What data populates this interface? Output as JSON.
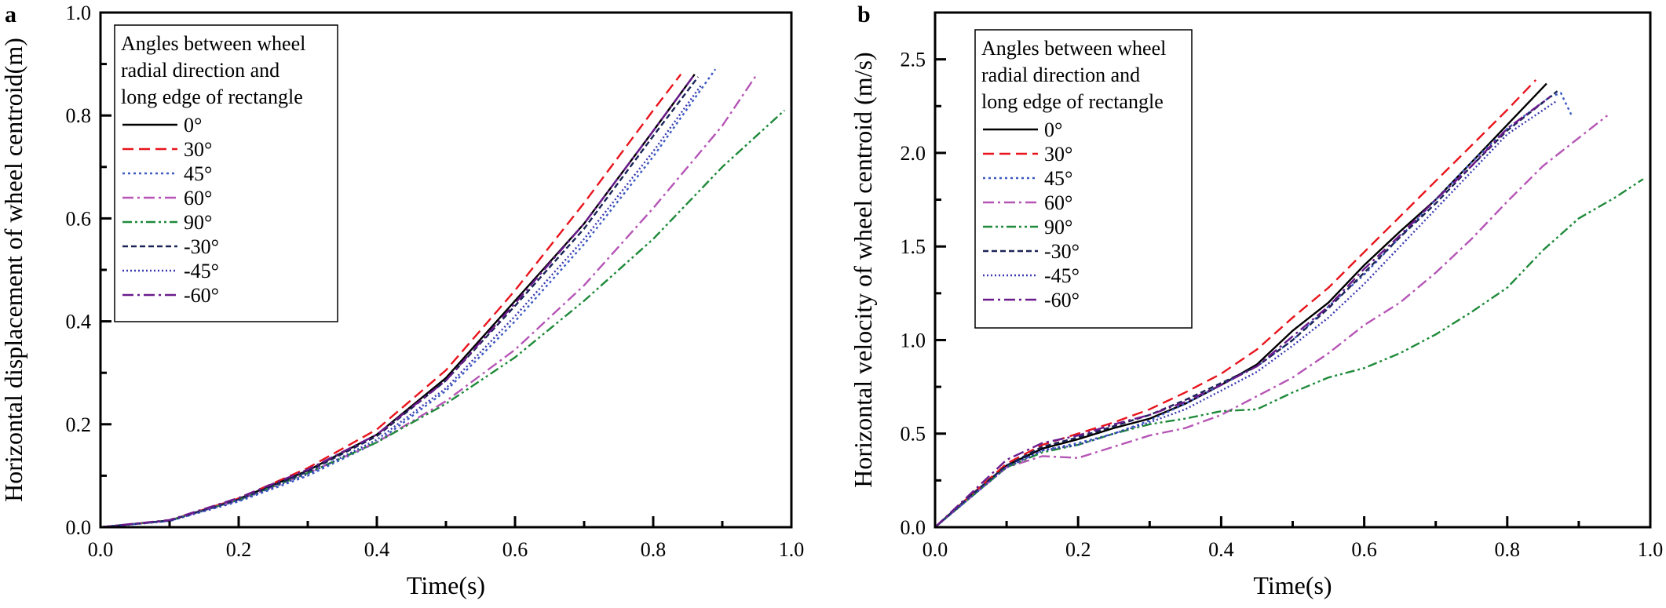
{
  "chart_data": [
    {
      "panel": "a",
      "type": "line",
      "xlabel": "Time(s)",
      "ylabel": "Horizontal displacement of wheel centroid(m)",
      "xlim": [
        0,
        1.0
      ],
      "ylim": [
        0,
        1.0
      ],
      "xticks": [
        "0.0",
        "0.2",
        "0.4",
        "0.6",
        "0.8",
        "1.0"
      ],
      "yticks": [
        "0.0",
        "0.2",
        "0.4",
        "0.6",
        "0.8",
        "1.0"
      ],
      "grid": false,
      "legend": {
        "title": [
          "Angles between wheel",
          "radial direction and",
          "long edge of rectangle"
        ],
        "placement": "top-left"
      },
      "series": [
        {
          "name": "0°",
          "color": "#000000",
          "dash": "solid",
          "x": [
            0,
            0.1,
            0.2,
            0.3,
            0.4,
            0.5,
            0.6,
            0.7,
            0.8,
            0.86
          ],
          "y": [
            0,
            0.013,
            0.055,
            0.11,
            0.18,
            0.29,
            0.44,
            0.59,
            0.77,
            0.88
          ]
        },
        {
          "name": "30°",
          "color": "#e8141c",
          "dash": "dashed",
          "x": [
            0,
            0.1,
            0.2,
            0.3,
            0.4,
            0.5,
            0.6,
            0.7,
            0.8,
            0.84
          ],
          "y": [
            0,
            0.013,
            0.056,
            0.115,
            0.19,
            0.305,
            0.46,
            0.63,
            0.81,
            0.88
          ]
        },
        {
          "name": "45°",
          "color": "#3a58c0",
          "dash": "dotted",
          "x": [
            0,
            0.1,
            0.2,
            0.3,
            0.4,
            0.5,
            0.6,
            0.7,
            0.8,
            0.89
          ],
          "y": [
            0,
            0.012,
            0.05,
            0.1,
            0.165,
            0.265,
            0.4,
            0.55,
            0.72,
            0.89
          ]
        },
        {
          "name": "60°",
          "color": "#b555b5",
          "dash": "dashdot",
          "x": [
            0,
            0.1,
            0.2,
            0.3,
            0.4,
            0.5,
            0.6,
            0.7,
            0.8,
            0.9,
            0.95
          ],
          "y": [
            0,
            0.013,
            0.053,
            0.105,
            0.165,
            0.245,
            0.345,
            0.47,
            0.62,
            0.78,
            0.88
          ]
        },
        {
          "name": "90°",
          "color": "#1f8a3a",
          "dash": "dashdotdot",
          "x": [
            0,
            0.1,
            0.2,
            0.3,
            0.4,
            0.5,
            0.6,
            0.7,
            0.8,
            0.9,
            0.99
          ],
          "y": [
            0,
            0.013,
            0.053,
            0.105,
            0.165,
            0.24,
            0.33,
            0.44,
            0.56,
            0.7,
            0.81
          ]
        },
        {
          "name": "-30°",
          "color": "#1a2456",
          "dash": "shortdash",
          "x": [
            0,
            0.1,
            0.2,
            0.3,
            0.4,
            0.5,
            0.6,
            0.7,
            0.8,
            0.865
          ],
          "y": [
            0,
            0.013,
            0.054,
            0.108,
            0.177,
            0.285,
            0.43,
            0.58,
            0.76,
            0.875
          ]
        },
        {
          "name": "-45°",
          "color": "#3838b0",
          "dash": "shortdot",
          "x": [
            0,
            0.1,
            0.2,
            0.3,
            0.4,
            0.5,
            0.6,
            0.7,
            0.8,
            0.87
          ],
          "y": [
            0,
            0.012,
            0.052,
            0.103,
            0.17,
            0.27,
            0.41,
            0.56,
            0.73,
            0.86
          ]
        },
        {
          "name": "-60°",
          "color": "#6a1a8c",
          "dash": "dashdot",
          "x": [
            0,
            0.1,
            0.2,
            0.3,
            0.4,
            0.5,
            0.6,
            0.7,
            0.8,
            0.86
          ],
          "y": [
            0,
            0.014,
            0.057,
            0.112,
            0.18,
            0.285,
            0.435,
            0.59,
            0.77,
            0.88
          ]
        }
      ]
    },
    {
      "panel": "b",
      "type": "line",
      "xlabel": "Time(s)",
      "ylabel": "Horizontal velocity of wheel centroid (m/s)",
      "xlim": [
        0,
        1.0
      ],
      "ylim": [
        0,
        2.75
      ],
      "xticks": [
        "0.0",
        "0.2",
        "0.4",
        "0.6",
        "0.8",
        "1.0"
      ],
      "yticks": [
        "0.0",
        "0.5",
        "1.0",
        "1.5",
        "2.0",
        "2.5"
      ],
      "grid": false,
      "legend": {
        "title": [
          "Angles between wheel",
          "radial direction and",
          "long edge of rectangle"
        ],
        "placement": "top-left"
      },
      "series": [
        {
          "name": "0°",
          "color": "#000000",
          "dash": "solid",
          "x": [
            0,
            0.05,
            0.1,
            0.15,
            0.2,
            0.25,
            0.3,
            0.35,
            0.4,
            0.45,
            0.5,
            0.55,
            0.6,
            0.65,
            0.7,
            0.75,
            0.8,
            0.855
          ],
          "y": [
            0,
            0.17,
            0.33,
            0.42,
            0.47,
            0.53,
            0.58,
            0.66,
            0.76,
            0.87,
            1.05,
            1.2,
            1.4,
            1.58,
            1.75,
            1.95,
            2.15,
            2.37
          ]
        },
        {
          "name": "30°",
          "color": "#e8141c",
          "dash": "dashed",
          "x": [
            0,
            0.05,
            0.1,
            0.15,
            0.2,
            0.25,
            0.3,
            0.35,
            0.4,
            0.45,
            0.5,
            0.55,
            0.6,
            0.65,
            0.7,
            0.75,
            0.8,
            0.84
          ],
          "y": [
            0,
            0.17,
            0.34,
            0.44,
            0.5,
            0.56,
            0.63,
            0.72,
            0.82,
            0.95,
            1.12,
            1.28,
            1.47,
            1.66,
            1.85,
            2.04,
            2.23,
            2.39
          ]
        },
        {
          "name": "45°",
          "color": "#3a58c0",
          "dash": "dotted",
          "x": [
            0,
            0.05,
            0.1,
            0.15,
            0.2,
            0.25,
            0.3,
            0.35,
            0.4,
            0.45,
            0.5,
            0.55,
            0.6,
            0.65,
            0.7,
            0.75,
            0.8,
            0.86,
            0.875,
            0.89
          ],
          "y": [
            0,
            0.16,
            0.32,
            0.41,
            0.45,
            0.5,
            0.57,
            0.66,
            0.76,
            0.86,
            1.0,
            1.18,
            1.35,
            1.55,
            1.75,
            1.95,
            2.13,
            2.3,
            2.32,
            2.2
          ]
        },
        {
          "name": "60°",
          "color": "#b555b5",
          "dash": "dashdot",
          "x": [
            0,
            0.05,
            0.1,
            0.15,
            0.2,
            0.25,
            0.3,
            0.35,
            0.4,
            0.45,
            0.5,
            0.55,
            0.6,
            0.65,
            0.7,
            0.75,
            0.8,
            0.85,
            0.94
          ],
          "y": [
            0,
            0.16,
            0.32,
            0.38,
            0.37,
            0.43,
            0.49,
            0.53,
            0.6,
            0.7,
            0.8,
            0.93,
            1.08,
            1.2,
            1.36,
            1.54,
            1.74,
            1.93,
            2.2
          ]
        },
        {
          "name": "90°",
          "color": "#1f8a3a",
          "dash": "dashdotdot",
          "x": [
            0,
            0.05,
            0.1,
            0.15,
            0.2,
            0.25,
            0.3,
            0.35,
            0.4,
            0.45,
            0.5,
            0.55,
            0.6,
            0.65,
            0.7,
            0.75,
            0.8,
            0.85,
            0.9,
            0.95,
            0.99
          ],
          "y": [
            0,
            0.16,
            0.32,
            0.4,
            0.44,
            0.5,
            0.55,
            0.58,
            0.62,
            0.63,
            0.72,
            0.8,
            0.85,
            0.93,
            1.03,
            1.15,
            1.28,
            1.48,
            1.65,
            1.76,
            1.86
          ]
        },
        {
          "name": "-30°",
          "color": "#1a2456",
          "dash": "shortdash",
          "x": [
            0,
            0.05,
            0.1,
            0.15,
            0.2,
            0.25,
            0.3,
            0.35,
            0.4,
            0.45,
            0.5,
            0.55,
            0.6,
            0.65,
            0.7,
            0.75,
            0.8,
            0.86,
            0.87
          ],
          "y": [
            0,
            0.17,
            0.33,
            0.43,
            0.48,
            0.54,
            0.6,
            0.68,
            0.77,
            0.86,
            1.0,
            1.17,
            1.36,
            1.55,
            1.73,
            1.93,
            2.12,
            2.3,
            2.33
          ]
        },
        {
          "name": "-45°",
          "color": "#3838b0",
          "dash": "shortdot",
          "x": [
            0,
            0.05,
            0.1,
            0.15,
            0.2,
            0.25,
            0.3,
            0.35,
            0.4,
            0.45,
            0.5,
            0.55,
            0.6,
            0.65,
            0.7,
            0.75,
            0.8,
            0.87
          ],
          "y": [
            0,
            0.16,
            0.32,
            0.41,
            0.44,
            0.5,
            0.56,
            0.63,
            0.73,
            0.83,
            0.97,
            1.12,
            1.3,
            1.5,
            1.7,
            1.9,
            2.1,
            2.28
          ]
        },
        {
          "name": "-60°",
          "color": "#6a1a8c",
          "dash": "dashdot",
          "x": [
            0,
            0.05,
            0.1,
            0.15,
            0.2,
            0.25,
            0.3,
            0.35,
            0.4,
            0.45,
            0.5,
            0.55,
            0.6,
            0.65,
            0.7,
            0.75,
            0.8,
            0.86
          ],
          "y": [
            0,
            0.18,
            0.36,
            0.45,
            0.49,
            0.55,
            0.6,
            0.67,
            0.76,
            0.86,
            1.02,
            1.18,
            1.38,
            1.56,
            1.75,
            1.93,
            2.13,
            2.3
          ]
        }
      ]
    }
  ]
}
